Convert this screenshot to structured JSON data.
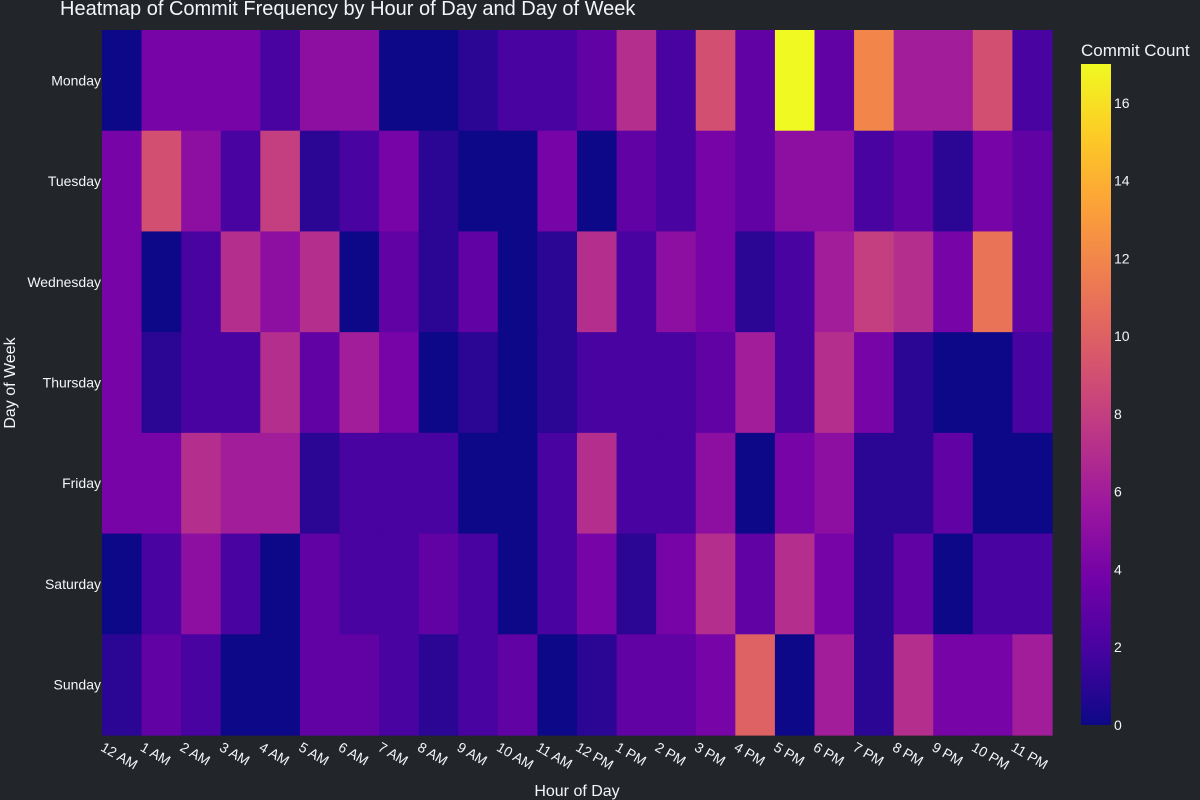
{
  "chart_data": {
    "type": "heatmap",
    "title": "Heatmap of Commit Frequency by Hour of Day and Day of Week",
    "xlabel": "Hour of Day",
    "ylabel": "Day of Week",
    "x": [
      "12 AM",
      "1 AM",
      "2 AM",
      "3 AM",
      "4 AM",
      "5 AM",
      "6 AM",
      "7 AM",
      "8 AM",
      "9 AM",
      "10 AM",
      "11 AM",
      "12 PM",
      "1 PM",
      "2 PM",
      "3 PM",
      "4 PM",
      "5 PM",
      "6 PM",
      "7 PM",
      "8 PM",
      "9 PM",
      "10 PM",
      "11 PM"
    ],
    "y": [
      "Monday",
      "Tuesday",
      "Wednesday",
      "Thursday",
      "Friday",
      "Saturday",
      "Sunday"
    ],
    "z": [
      [
        0,
        4,
        4,
        4,
        2,
        5,
        5,
        0,
        0,
        1,
        2,
        2,
        3,
        7,
        2,
        9,
        3,
        17,
        3,
        12,
        6,
        6,
        9,
        2
      ],
      [
        4,
        9,
        5,
        2,
        8,
        1,
        2,
        4,
        1,
        0,
        0,
        4,
        0,
        3,
        2,
        4,
        3,
        5,
        5,
        2,
        3,
        1,
        4,
        3
      ],
      [
        4,
        0,
        2,
        7,
        5,
        7,
        0,
        3,
        1,
        3,
        0,
        1,
        7,
        2,
        5,
        4,
        1,
        2,
        6,
        8,
        7,
        4,
        11,
        3
      ],
      [
        4,
        1,
        2,
        2,
        7,
        3,
        6,
        4,
        0,
        1,
        0,
        1,
        2,
        2,
        2,
        3,
        6,
        2,
        7,
        4,
        1,
        0,
        0,
        2
      ],
      [
        4,
        4,
        7,
        6,
        6,
        1,
        2,
        2,
        2,
        0,
        0,
        2,
        7,
        2,
        2,
        5,
        0,
        4,
        5,
        1,
        1,
        3,
        0,
        0
      ],
      [
        0,
        2,
        5,
        2,
        0,
        3,
        2,
        2,
        3,
        2,
        0,
        2,
        4,
        1,
        4,
        7,
        3,
        7,
        4,
        1,
        3,
        0,
        2,
        2
      ],
      [
        1,
        3,
        2,
        0,
        0,
        3,
        3,
        2,
        1,
        2,
        3,
        0,
        1,
        3,
        3,
        4,
        10,
        0,
        6,
        1,
        7,
        4,
        4,
        6
      ]
    ],
    "zlim": [
      0,
      17
    ],
    "colorscale": "plasma",
    "colorbar": {
      "title": "Commit Count",
      "ticks": [
        0,
        2,
        4,
        6,
        8,
        10,
        12,
        14,
        16
      ]
    },
    "background_color": "#22252a",
    "text_color": "#f2f5fa"
  }
}
